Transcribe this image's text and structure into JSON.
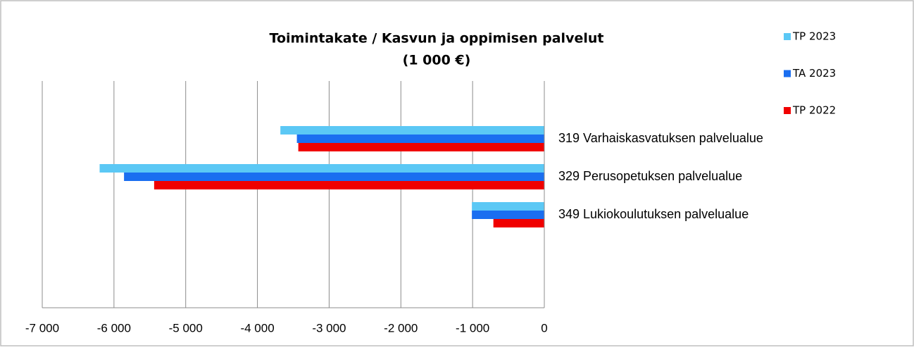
{
  "chart_data": {
    "type": "barh",
    "title": [
      "Toimintakate / Kasvun ja oppimisen palvelut",
      "(1 000 €)"
    ],
    "categories": [
      "319 Varhaiskasvatuksen palvelualue",
      "329 Perusopetuksen palvelualue",
      "349 Lukiokoulutuksen palvelualue"
    ],
    "series": [
      {
        "name": "TP 2023",
        "color": "#5bc8f5",
        "values": [
          -3680,
          -6200,
          -1010
        ]
      },
      {
        "name": "TA 2023",
        "color": "#1a6ef0",
        "values": [
          -3450,
          -5860,
          -1010
        ]
      },
      {
        "name": "TP 2022",
        "color": "#f00000",
        "values": [
          -3430,
          -5440,
          -710
        ]
      }
    ],
    "xlim": [
      -7000,
      0
    ],
    "xticks": [
      {
        "value": -7000,
        "label": "-7 000"
      },
      {
        "value": -6000,
        "label": "-6 000"
      },
      {
        "value": -5000,
        "label": "-5 000"
      },
      {
        "value": -4000,
        "label": "-4 000"
      },
      {
        "value": -3000,
        "label": "-3 000"
      },
      {
        "value": -2000,
        "label": "-2 000"
      },
      {
        "value": -1000,
        "label": "-1 000"
      },
      0
    ],
    "grid": true,
    "legend": "right"
  }
}
